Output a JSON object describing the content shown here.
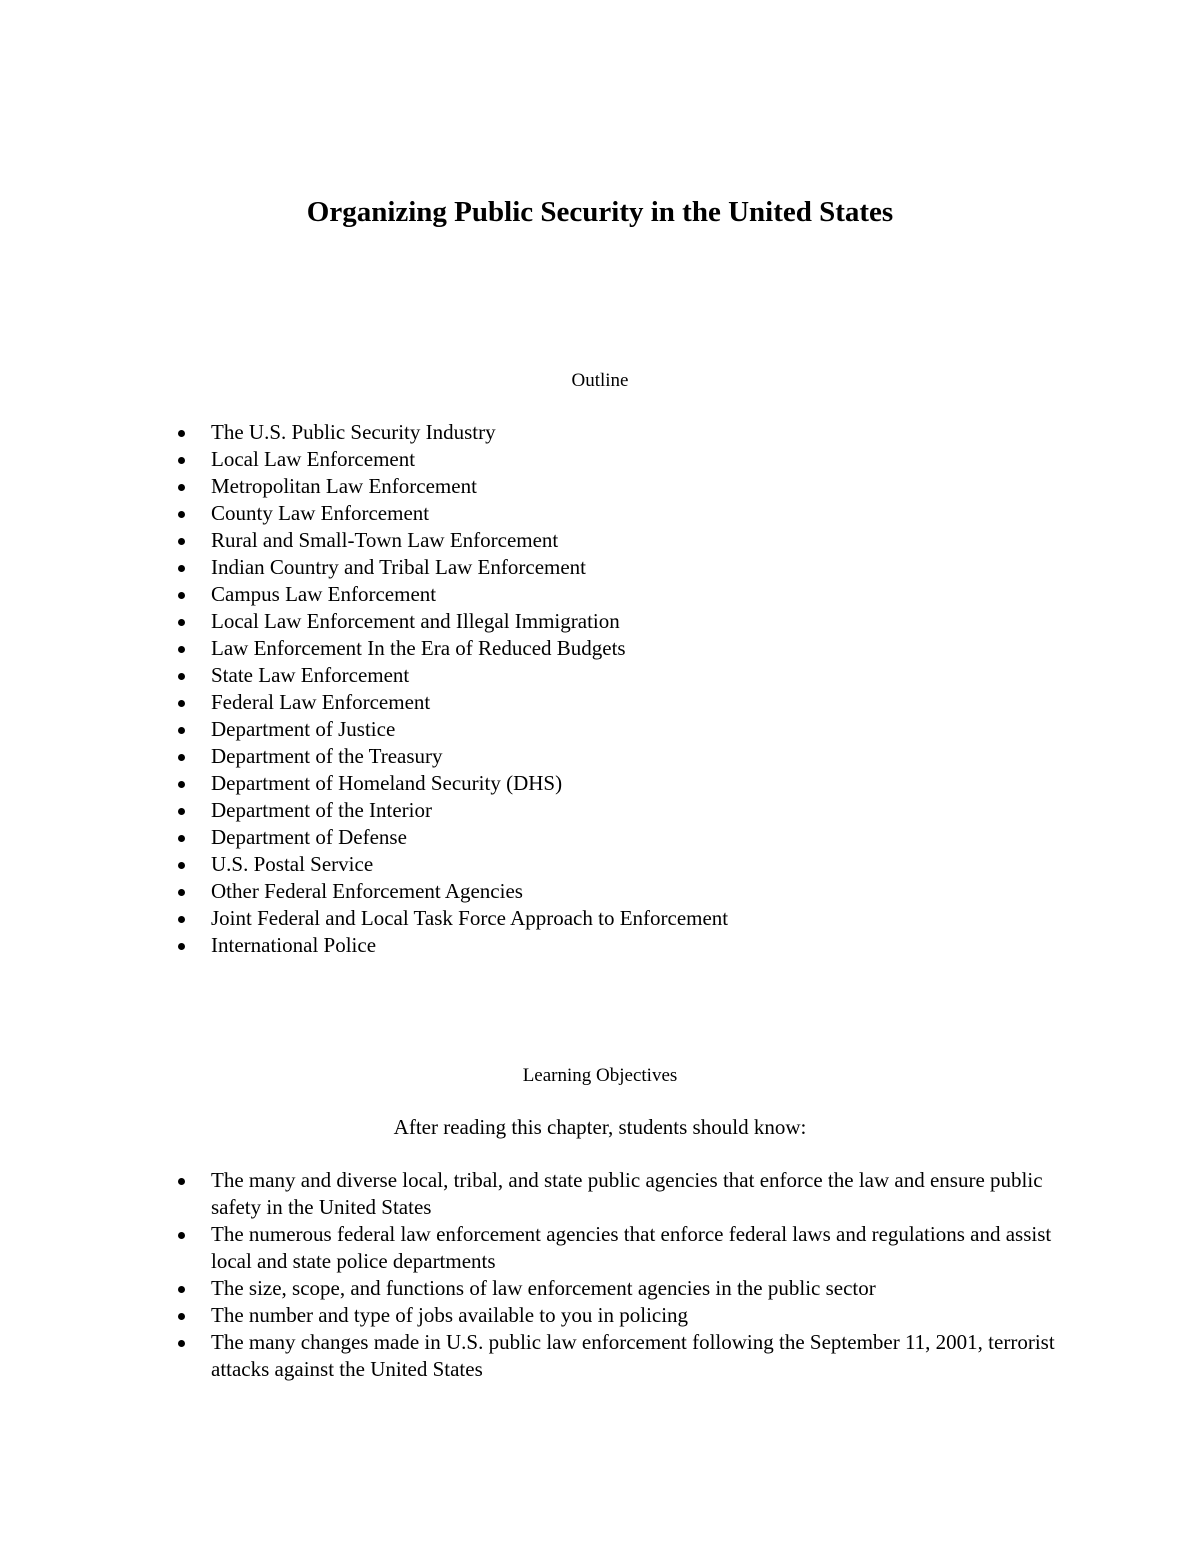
{
  "title": "Organizing Public Security in the United States",
  "outline": {
    "heading": "Outline",
    "items": [
      "The U.S. Public Security Industry",
      "Local Law Enforcement",
      "Metropolitan Law Enforcement",
      "County Law Enforcement",
      "Rural and Small-Town Law Enforcement",
      "Indian Country and Tribal Law Enforcement",
      "Campus Law Enforcement",
      "Local Law Enforcement and Illegal Immigration",
      "Law Enforcement In the Era of Reduced Budgets",
      "State Law Enforcement",
      "Federal Law Enforcement",
      "Department of Justice",
      "Department of the Treasury",
      "Department of Homeland Security (DHS)",
      "Department of the Interior",
      "Department of Defense",
      "U.S. Postal Service",
      "Other Federal Enforcement Agencies",
      "Joint Federal and Local Task Force Approach to Enforcement",
      "International Police"
    ]
  },
  "objectives": {
    "heading": "Learning Objectives",
    "intro": "After reading this chapter, students should know:",
    "items": [
      "The many and diverse local, tribal, and state public agencies that enforce the law and ensure public safety in the United States",
      "The numerous federal law enforcement agencies that enforce federal laws and regulations and assist local and state police departments",
      "The size, scope, and functions of law enforcement agencies in the public sector",
      "The number and type of jobs available to you in policing",
      "The many changes made in U.S. public law enforcement following the September 11, 2001, terrorist attacks against the United States"
    ]
  }
}
